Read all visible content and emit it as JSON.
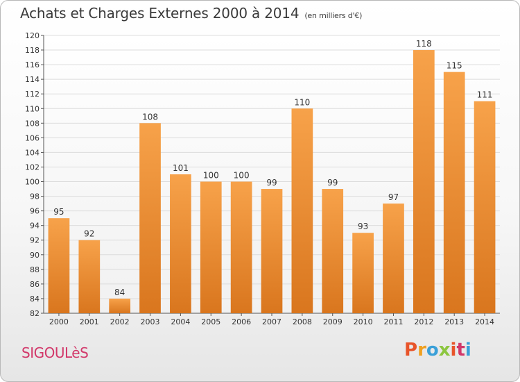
{
  "header": {
    "title": "Achats et Charges Externes 2000 à 2014",
    "subtitle": "(en milliers d'€)"
  },
  "footer": {
    "commune": "SIGOULèS",
    "logo_letters": [
      "P",
      "r",
      "o",
      "x",
      "i",
      "t",
      "i"
    ],
    "logo_colors": [
      "#e8542a",
      "#f0a020",
      "#3aa0d8",
      "#8cc63f",
      "#e8542a",
      "#d2386a",
      "#3aa0d8"
    ]
  },
  "chart_data": {
    "type": "bar",
    "categories": [
      "2000",
      "2001",
      "2002",
      "2003",
      "2004",
      "2005",
      "2006",
      "2007",
      "2008",
      "2009",
      "2010",
      "2011",
      "2012",
      "2013",
      "2014"
    ],
    "values": [
      95,
      92,
      84,
      108,
      101,
      100,
      100,
      99,
      110,
      99,
      93,
      97,
      118,
      115,
      111
    ],
    "ylim": [
      82,
      120
    ],
    "yticks": [
      82,
      84,
      86,
      88,
      90,
      92,
      94,
      96,
      98,
      100,
      102,
      104,
      106,
      108,
      110,
      112,
      114,
      116,
      118,
      120
    ],
    "grid": true,
    "bar_color": "#f0953a",
    "bar_color_dark": "#d9761e",
    "grid_color": "#dcdcdc"
  }
}
